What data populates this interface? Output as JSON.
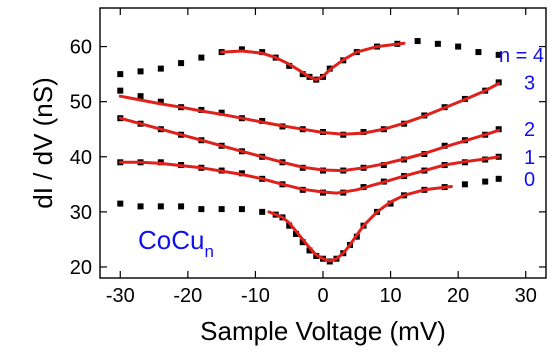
{
  "chart_data": {
    "type": "scatter",
    "xlabel": "Sample Voltage (mV)",
    "ylabel": "dI / dV (nS)",
    "xlim": [
      -33,
      33
    ],
    "ylim": [
      18,
      67
    ],
    "x_ticks": [
      -30,
      -20,
      -10,
      0,
      10,
      20,
      30
    ],
    "y_ticks": [
      20,
      30,
      40,
      50,
      60
    ],
    "annotation": {
      "main": "CoCu",
      "subscript": "n"
    },
    "marker_color": "#000000",
    "fit_color": "#e0201a",
    "label_color": "#1010ee",
    "series": [
      {
        "name": "0",
        "label": "0",
        "points": [
          [
            -30,
            31.5
          ],
          [
            -27,
            31
          ],
          [
            -24,
            31
          ],
          [
            -21,
            31
          ],
          [
            -18,
            30.5
          ],
          [
            -15,
            30.5
          ],
          [
            -12,
            30.5
          ],
          [
            -9,
            30
          ],
          [
            -7,
            29.5
          ],
          [
            -6,
            29
          ],
          [
            -5,
            27.5
          ],
          [
            -4,
            26
          ],
          [
            -3,
            24.5
          ],
          [
            -2,
            23
          ],
          [
            -1,
            22
          ],
          [
            0,
            21.5
          ],
          [
            1,
            21
          ],
          [
            2,
            21.5
          ],
          [
            3,
            22.5
          ],
          [
            4,
            24
          ],
          [
            5,
            25.5
          ],
          [
            6,
            27.5
          ],
          [
            8,
            30
          ],
          [
            10,
            31.5
          ],
          [
            12,
            33
          ],
          [
            15,
            34
          ],
          [
            18,
            34.5
          ],
          [
            21,
            35
          ],
          [
            24,
            35.5
          ],
          [
            26,
            36
          ]
        ],
        "fit": [
          [
            -8,
            30
          ],
          [
            -6,
            29
          ],
          [
            -5,
            28
          ],
          [
            -4,
            26.5
          ],
          [
            -3,
            25
          ],
          [
            -2,
            23.5
          ],
          [
            -1,
            22.2
          ],
          [
            0,
            21.5
          ],
          [
            1,
            21.1
          ],
          [
            2,
            21.5
          ],
          [
            3,
            22.5
          ],
          [
            4,
            24
          ],
          [
            5,
            25.8
          ],
          [
            6,
            27.5
          ],
          [
            8,
            30
          ],
          [
            10,
            31.8
          ],
          [
            12,
            33
          ],
          [
            15,
            34
          ],
          [
            19,
            34.6
          ]
        ]
      },
      {
        "name": "1",
        "label": "1",
        "points": [
          [
            -30,
            39
          ],
          [
            -27,
            39
          ],
          [
            -24,
            39
          ],
          [
            -21,
            38.5
          ],
          [
            -18,
            38
          ],
          [
            -15,
            37.5
          ],
          [
            -12,
            37
          ],
          [
            -9,
            36
          ],
          [
            -6,
            35
          ],
          [
            -3,
            34
          ],
          [
            0,
            33.5
          ],
          [
            3,
            33.5
          ],
          [
            6,
            34.5
          ],
          [
            9,
            35.5
          ],
          [
            12,
            36.5
          ],
          [
            15,
            37.5
          ],
          [
            18,
            38.5
          ],
          [
            21,
            39
          ],
          [
            24,
            39.5
          ],
          [
            26,
            40
          ]
        ],
        "fit": [
          [
            -30,
            39
          ],
          [
            -27,
            39
          ],
          [
            -24,
            38.8
          ],
          [
            -21,
            38.4
          ],
          [
            -18,
            38
          ],
          [
            -15,
            37.4
          ],
          [
            -12,
            36.8
          ],
          [
            -9,
            36
          ],
          [
            -6,
            35
          ],
          [
            -3,
            34.1
          ],
          [
            0,
            33.6
          ],
          [
            2,
            33.4
          ],
          [
            5,
            34
          ],
          [
            9,
            35.4
          ],
          [
            12,
            36.5
          ],
          [
            15,
            37.5
          ],
          [
            18,
            38.5
          ],
          [
            21,
            39.1
          ],
          [
            24,
            39.6
          ],
          [
            26,
            40
          ]
        ]
      },
      {
        "name": "2",
        "label": "2",
        "points": [
          [
            -30,
            47
          ],
          [
            -27,
            46
          ],
          [
            -24,
            45
          ],
          [
            -21,
            44
          ],
          [
            -18,
            43
          ],
          [
            -15,
            42
          ],
          [
            -12,
            41
          ],
          [
            -9,
            40
          ],
          [
            -6,
            39
          ],
          [
            -3,
            38
          ],
          [
            0,
            37.5
          ],
          [
            3,
            37.5
          ],
          [
            6,
            38
          ],
          [
            9,
            38.5
          ],
          [
            12,
            39.5
          ],
          [
            15,
            40.5
          ],
          [
            18,
            42
          ],
          [
            21,
            43
          ],
          [
            24,
            44
          ],
          [
            26,
            45
          ]
        ],
        "fit": [
          [
            -30,
            47
          ],
          [
            -27,
            46
          ],
          [
            -24,
            45
          ],
          [
            -21,
            44
          ],
          [
            -18,
            43
          ],
          [
            -15,
            42
          ],
          [
            -12,
            41
          ],
          [
            -9,
            40
          ],
          [
            -6,
            39
          ],
          [
            -3,
            38.1
          ],
          [
            0,
            37.6
          ],
          [
            3,
            37.5
          ],
          [
            6,
            38
          ],
          [
            9,
            38.7
          ],
          [
            12,
            39.6
          ],
          [
            15,
            40.6
          ],
          [
            18,
            41.8
          ],
          [
            21,
            42.9
          ],
          [
            24,
            44
          ],
          [
            26,
            44.8
          ]
        ]
      },
      {
        "name": "3",
        "label": "3",
        "points": [
          [
            -30,
            52
          ],
          [
            -27,
            51
          ],
          [
            -24,
            50
          ],
          [
            -21,
            49
          ],
          [
            -18,
            48.5
          ],
          [
            -15,
            48
          ],
          [
            -12,
            47
          ],
          [
            -9,
            46.5
          ],
          [
            -6,
            45.5
          ],
          [
            -3,
            45
          ],
          [
            0,
            44.5
          ],
          [
            3,
            44
          ],
          [
            6,
            44.5
          ],
          [
            9,
            45
          ],
          [
            12,
            46
          ],
          [
            15,
            47.5
          ],
          [
            18,
            49
          ],
          [
            21,
            50.5
          ],
          [
            24,
            52
          ],
          [
            26,
            53.5
          ]
        ],
        "fit": [
          [
            -30,
            51
          ],
          [
            -27,
            50.3
          ],
          [
            -24,
            49.6
          ],
          [
            -21,
            49
          ],
          [
            -18,
            48.3
          ],
          [
            -15,
            47.7
          ],
          [
            -12,
            47
          ],
          [
            -9,
            46.3
          ],
          [
            -6,
            45.6
          ],
          [
            -3,
            45
          ],
          [
            0,
            44.4
          ],
          [
            3,
            44.1
          ],
          [
            6,
            44.3
          ],
          [
            9,
            45
          ],
          [
            12,
            46.1
          ],
          [
            15,
            47.4
          ],
          [
            18,
            48.9
          ],
          [
            21,
            50.4
          ],
          [
            24,
            52
          ],
          [
            26,
            53.3
          ]
        ]
      },
      {
        "name": "n = 4",
        "label": "n = 4",
        "points": [
          [
            -30,
            55
          ],
          [
            -27,
            55.5
          ],
          [
            -24,
            56
          ],
          [
            -21,
            57
          ],
          [
            -18,
            58
          ],
          [
            -15,
            59
          ],
          [
            -12,
            59.5
          ],
          [
            -9,
            59
          ],
          [
            -7,
            58
          ],
          [
            -5,
            56.5
          ],
          [
            -3,
            55
          ],
          [
            -2,
            54.5
          ],
          [
            -1,
            54
          ],
          [
            0,
            54.5
          ],
          [
            1,
            56
          ],
          [
            3,
            57.5
          ],
          [
            5,
            59
          ],
          [
            8,
            60
          ],
          [
            11,
            60.5
          ],
          [
            14,
            61
          ],
          [
            17,
            60.5
          ],
          [
            20,
            60
          ],
          [
            23,
            59
          ],
          [
            26,
            58.5
          ]
        ],
        "fit": [
          [
            -15,
            59
          ],
          [
            -12,
            59.2
          ],
          [
            -9,
            58.8
          ],
          [
            -7,
            58
          ],
          [
            -5,
            56.8
          ],
          [
            -3,
            55.3
          ],
          [
            -2,
            54.5
          ],
          [
            -1,
            54
          ],
          [
            0,
            54.6
          ],
          [
            1,
            55.8
          ],
          [
            3,
            57.6
          ],
          [
            5,
            59
          ],
          [
            8,
            60
          ],
          [
            12,
            60.6
          ]
        ]
      }
    ]
  }
}
